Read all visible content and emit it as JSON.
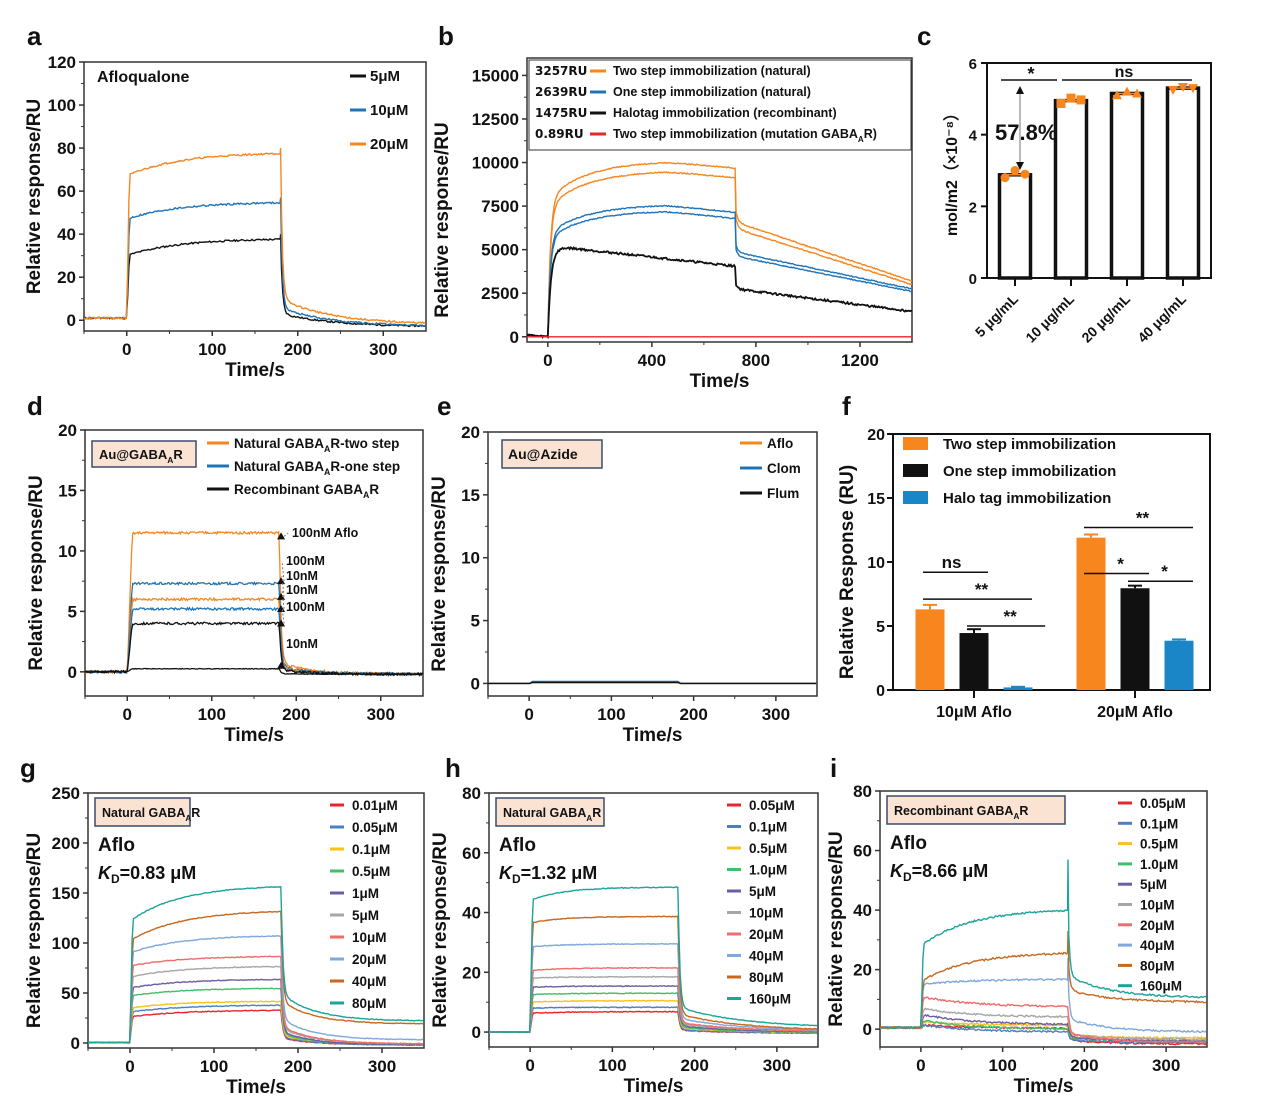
{
  "colors": {
    "orange": "#f7861f",
    "blue": "#1f74b8",
    "black": "#111111",
    "red": "#e8252b",
    "halo_blue": "#1a86c7",
    "annot_blue": "#1f6fbf",
    "percent_blue": "#1515e6",
    "box_fill": "#fbe3d4",
    "box_stroke": "#3b4a6b",
    "conc": [
      "#e8252b",
      "#4d7fbf",
      "#f7c21b",
      "#3fbf6a",
      "#6a5fa0",
      "#a6a6a6",
      "#f26b6b",
      "#7fa8dc",
      "#c8681f",
      "#1aa59a"
    ]
  },
  "chart_data": [
    {
      "id": "a",
      "panel_label": "a",
      "type": "line",
      "xlabel": "Time/s",
      "ylabel": "Relative response/RU",
      "xlim": [
        -50,
        350
      ],
      "ylim": [
        -5,
        120
      ],
      "xticks": [
        0,
        100,
        200,
        300
      ],
      "yticks": [
        0,
        20,
        40,
        60,
        80,
        100,
        120
      ],
      "annotation": "Afloqualone",
      "legend_position": "top-right",
      "series": [
        {
          "name": "5μM",
          "color_key": "black",
          "assoc_start": 30,
          "assoc_end": 38,
          "dissoc_end": -3
        },
        {
          "name": "10μM",
          "color_key": "blue",
          "assoc_start": 47,
          "assoc_end": 55,
          "dissoc_end": -3
        },
        {
          "name": "20μM",
          "color_key": "orange",
          "assoc_start": 67,
          "assoc_end": 78,
          "dissoc_end": -2
        }
      ],
      "injection_start": 0,
      "injection_end": 180
    },
    {
      "id": "b",
      "panel_label": "b",
      "type": "line",
      "xlabel": "Time/s",
      "ylabel": "Relative response/RU",
      "xlim": [
        -80,
        1400
      ],
      "ylim": [
        -300,
        16000
      ],
      "xticks": [
        0,
        400,
        800,
        1200
      ],
      "yticks": [
        0,
        2500,
        5000,
        7500,
        10000,
        12500,
        15000
      ],
      "legend_position": "top",
      "legend": [
        {
          "value": "3257RU",
          "label": "Two step immobilization (natural)",
          "color_key": "orange"
        },
        {
          "value": "2639RU",
          "label": "One step immobilization (natural)",
          "color_key": "blue"
        },
        {
          "value": "1475RU",
          "label": "Halotag immobilization (recombinant)",
          "color_key": "black"
        },
        {
          "value": "0.89RU",
          "label": "Two step immobilization (mutation GABA",
          "label_sub": "A",
          "label_tail": "R)",
          "color_key": "red"
        }
      ],
      "series": [
        {
          "name": "Two step (natural) run 1",
          "color_key": "orange",
          "peak": 10100,
          "end_assoc": 9700,
          "end": 3200
        },
        {
          "name": "Two step (natural) run 2",
          "color_key": "orange",
          "peak": 9550,
          "end_assoc": 9150,
          "end": 3000
        },
        {
          "name": "One step (natural) run 1",
          "color_key": "blue",
          "peak": 7600,
          "end_assoc": 7150,
          "end": 2750
        },
        {
          "name": "One step (natural) run 2",
          "color_key": "blue",
          "peak": 7250,
          "end_assoc": 6800,
          "end": 2600
        },
        {
          "name": "Halotag (recombinant)",
          "color_key": "black",
          "peak": 5100,
          "end_assoc": 4050,
          "end": 1450
        },
        {
          "name": "Mutation GABAAR",
          "color_key": "red",
          "peak": 0,
          "end_assoc": 0,
          "end": 0
        }
      ],
      "injection_start": 0,
      "injection_end": 720
    },
    {
      "id": "c",
      "panel_label": "c",
      "type": "bar",
      "ylabel": "mol/m2（×10⁻⁸）",
      "ylim": [
        0,
        6
      ],
      "yticks": [
        0,
        2,
        4,
        6
      ],
      "categories": [
        "5 μg/mL",
        "10 μg/mL",
        "20 μg/mL",
        "40 μg/mL"
      ],
      "values": [
        2.88,
        4.95,
        5.15,
        5.3
      ],
      "points": [
        [
          2.8,
          3.0,
          2.9
        ],
        [
          4.87,
          5.02,
          4.97
        ],
        [
          5.1,
          5.2,
          5.15
        ],
        [
          5.25,
          5.33,
          5.3
        ]
      ],
      "markers": [
        "circle",
        "square",
        "triangle-up",
        "triangle-down"
      ],
      "significance": [
        {
          "label": "*",
          "from": 0,
          "to": 0.5
        },
        {
          "label": "ns",
          "from": 1,
          "to": 3
        }
      ],
      "annotation": "57.8%"
    },
    {
      "id": "d",
      "panel_label": "d",
      "type": "line",
      "xlabel": "Time/s",
      "ylabel": "Relative response/RU",
      "xlim": [
        -50,
        350
      ],
      "ylim": [
        -2,
        20
      ],
      "xticks": [
        0,
        100,
        200,
        300
      ],
      "yticks": [
        0,
        5,
        10,
        15,
        20
      ],
      "box_label": "Au@GABA",
      "box_label_sub": "A",
      "box_label_tail": "R",
      "legend_position": "top-right",
      "legend": [
        {
          "label": "Natural GABA",
          "sub": "A",
          "tail": "R-two step",
          "color_key": "orange"
        },
        {
          "label": "Natural GABA",
          "sub": "A",
          "tail": "R-one step",
          "color_key": "blue"
        },
        {
          "label": "Recombinant GABA",
          "sub": "A",
          "tail": "R",
          "color_key": "black"
        }
      ],
      "series": [
        {
          "name": "Natural two step 100nM",
          "color_key": "orange",
          "level": 11.5,
          "note": "100nM Aflo"
        },
        {
          "name": "Natural one step 100nM",
          "color_key": "blue",
          "level": 7.3,
          "note": "100nM"
        },
        {
          "name": "Natural two step 10nM",
          "color_key": "orange",
          "level": 6.0,
          "note": "10nM"
        },
        {
          "name": "Natural one step 10nM",
          "color_key": "blue",
          "level": 5.2,
          "note": "10nM"
        },
        {
          "name": "Recombinant 100nM",
          "color_key": "black",
          "level": 4.0,
          "note": "100nM"
        },
        {
          "name": "Recombinant 10nM",
          "color_key": "black",
          "level": 0.25,
          "note": "10nM"
        }
      ],
      "injection_start": 0,
      "injection_end": 180
    },
    {
      "id": "e",
      "panel_label": "e",
      "type": "line",
      "xlabel": "Time/s",
      "ylabel": "Relative response/RU",
      "xlim": [
        -50,
        350
      ],
      "ylim": [
        -1,
        20
      ],
      "xticks": [
        0,
        100,
        200,
        300
      ],
      "yticks": [
        0,
        5,
        10,
        15,
        20
      ],
      "box_label": "Au@Azide",
      "legend_position": "top-right",
      "series": [
        {
          "name": "Aflo",
          "color_key": "orange",
          "level": 0.05
        },
        {
          "name": "Clom",
          "color_key": "blue",
          "level": 0.15
        },
        {
          "name": "Flum",
          "color_key": "black",
          "level": 0.08
        }
      ],
      "injection_start": 0,
      "injection_end": 180
    },
    {
      "id": "f",
      "panel_label": "f",
      "type": "bar",
      "ylabel": "Relative Response (RU)",
      "ylim": [
        0,
        20
      ],
      "yticks": [
        0,
        5,
        10,
        15,
        20
      ],
      "categories": [
        "10μM Aflo",
        "20μM Aflo"
      ],
      "legend_position": "top-left",
      "series": [
        {
          "name": "Two step immobilization",
          "color_key": "orange",
          "values": [
            6.3,
            11.9
          ],
          "errors": [
            0.35,
            0.25
          ]
        },
        {
          "name": "One step immobilization",
          "color_key": "black",
          "values": [
            4.45,
            7.95
          ],
          "errors": [
            0.3,
            0.2
          ]
        },
        {
          "name": "Halo tag immobilization",
          "color_key": "halo_blue",
          "values": [
            0.2,
            3.85
          ],
          "errors": [
            0.05,
            0.1
          ]
        }
      ],
      "significance": [
        {
          "label": "ns",
          "group": 0,
          "from": 0,
          "to": 1,
          "y": 9.2
        },
        {
          "label": "**",
          "group": 0,
          "from": 0,
          "to": 2,
          "y": 7.1
        },
        {
          "label": "**",
          "group": 0,
          "from": 1,
          "to": 2.3,
          "y": 5.0
        },
        {
          "label": "**",
          "group": 1,
          "from": 0,
          "to": 2,
          "y": 12.7
        },
        {
          "label": "*",
          "group": 1,
          "from": 0,
          "to": 1,
          "y": 9.1
        },
        {
          "label": "*",
          "group": 1,
          "from": 1,
          "to": 2,
          "y": 8.5
        }
      ]
    },
    {
      "id": "g",
      "panel_label": "g",
      "type": "line",
      "xlabel": "Time/s",
      "ylabel": "Relative response/RU",
      "xlim": [
        -50,
        350
      ],
      "ylim": [
        -5,
        250
      ],
      "xticks": [
        0,
        100,
        200,
        300
      ],
      "yticks": [
        0,
        50,
        100,
        150,
        200,
        250
      ],
      "box_label": "Natural GABA",
      "box_label_sub": "A",
      "box_label_tail": "R",
      "drug": "Aflo",
      "kd_label": "K",
      "kd_sub": "D",
      "kd_value": "=0.83 μM",
      "legend_position": "top-right",
      "series": [
        {
          "name": "0.01μM",
          "a0": 26,
          "a1": 33,
          "end": -2
        },
        {
          "name": "0.05μM",
          "a0": 31,
          "a1": 38,
          "end": -2
        },
        {
          "name": "0.1μM",
          "a0": 35,
          "a1": 42,
          "end": -1
        },
        {
          "name": "0.5μM",
          "a0": 47,
          "a1": 55,
          "end": -2
        },
        {
          "name": "1μM",
          "a0": 55,
          "a1": 64,
          "end": -2
        },
        {
          "name": "5μM",
          "a0": 66,
          "a1": 77,
          "end": -1
        },
        {
          "name": "10μM",
          "a0": 77,
          "a1": 87,
          "end": -1
        },
        {
          "name": "20μM",
          "a0": 90,
          "a1": 108,
          "end": 3
        },
        {
          "name": "40μM",
          "a0": 102,
          "a1": 133,
          "end": 19
        },
        {
          "name": "80μM",
          "a0": 122,
          "a1": 158,
          "end": 22
        }
      ],
      "injection_start": 0,
      "injection_end": 180
    },
    {
      "id": "h",
      "panel_label": "h",
      "type": "line",
      "xlabel": "Time/s",
      "ylabel": "Relative response/RU",
      "xlim": [
        -50,
        350
      ],
      "ylim": [
        -5,
        80
      ],
      "xticks": [
        0,
        100,
        200,
        300
      ],
      "yticks": [
        0,
        20,
        40,
        60,
        80
      ],
      "box_label": "Natural GABA",
      "box_label_sub": "A",
      "box_label_tail": "R",
      "drug": "Aflo",
      "kd_label": "K",
      "kd_sub": "D",
      "kd_value": "=1.32 μM",
      "legend_position": "top-right",
      "series": [
        {
          "name": "0.05μM",
          "a0": 6.3,
          "a1": 6.8,
          "end": -0.5
        },
        {
          "name": "0.1μM",
          "a0": 8,
          "a1": 8.3,
          "end": -0.5
        },
        {
          "name": "0.5μM",
          "a0": 10,
          "a1": 10.5,
          "end": -0.3
        },
        {
          "name": "1.0μM",
          "a0": 12.5,
          "a1": 13,
          "end": -0.3
        },
        {
          "name": "5μM",
          "a0": 15,
          "a1": 15.4,
          "end": -0.2
        },
        {
          "name": "10μM",
          "a0": 18,
          "a1": 18.5,
          "end": 0
        },
        {
          "name": "20μM",
          "a0": 20.5,
          "a1": 21.5,
          "end": 0
        },
        {
          "name": "40μM",
          "a0": 28.5,
          "a1": 29.5,
          "end": 0.2
        },
        {
          "name": "80μM",
          "a0": 36.5,
          "a1": 38.7,
          "end": 0.3
        },
        {
          "name": "160μM",
          "a0": 44,
          "a1": 48.5,
          "end": 1.3
        }
      ],
      "injection_start": 0,
      "injection_end": 180
    },
    {
      "id": "i",
      "panel_label": "i",
      "type": "line",
      "xlabel": "Time/s",
      "ylabel": "Relative response/RU",
      "xlim": [
        -50,
        350
      ],
      "ylim": [
        -6,
        80
      ],
      "xticks": [
        0,
        100,
        200,
        300
      ],
      "yticks": [
        0,
        20,
        40,
        60,
        80
      ],
      "box_label": "Recombinant GABA",
      "box_label_sub": "A",
      "box_label_tail": "R",
      "drug": "Aflo",
      "kd_label": "K",
      "kd_sub": "D",
      "kd_value": "=8.66 μM",
      "legend_position": "top-right",
      "series": [
        {
          "name": "0.05μM",
          "a0": 1.5,
          "a1": 0.2,
          "end": -5
        },
        {
          "name": "0.1μM",
          "a0": 1.5,
          "a1": -1,
          "end": -4.5
        },
        {
          "name": "0.5μM",
          "a0": 2.5,
          "a1": 1.2,
          "end": -3
        },
        {
          "name": "1.0μM",
          "a0": 3,
          "a1": 0,
          "end": -4
        },
        {
          "name": "5μM",
          "a0": 5,
          "a1": 1.5,
          "end": -4
        },
        {
          "name": "10μM",
          "a0": 7,
          "a1": 4,
          "end": -3.5
        },
        {
          "name": "20μM",
          "a0": 11,
          "a1": 7.5,
          "end": -4.5
        },
        {
          "name": "40μM",
          "a0": 15,
          "a1": 16.8,
          "end": -1
        },
        {
          "name": "80μM",
          "a0": 16,
          "a1": 26,
          "end": 9
        },
        {
          "name": "160μM",
          "a0": 28,
          "a1": 40.5,
          "end": 10.5
        }
      ],
      "injection_start": 0,
      "injection_end": 180
    }
  ]
}
